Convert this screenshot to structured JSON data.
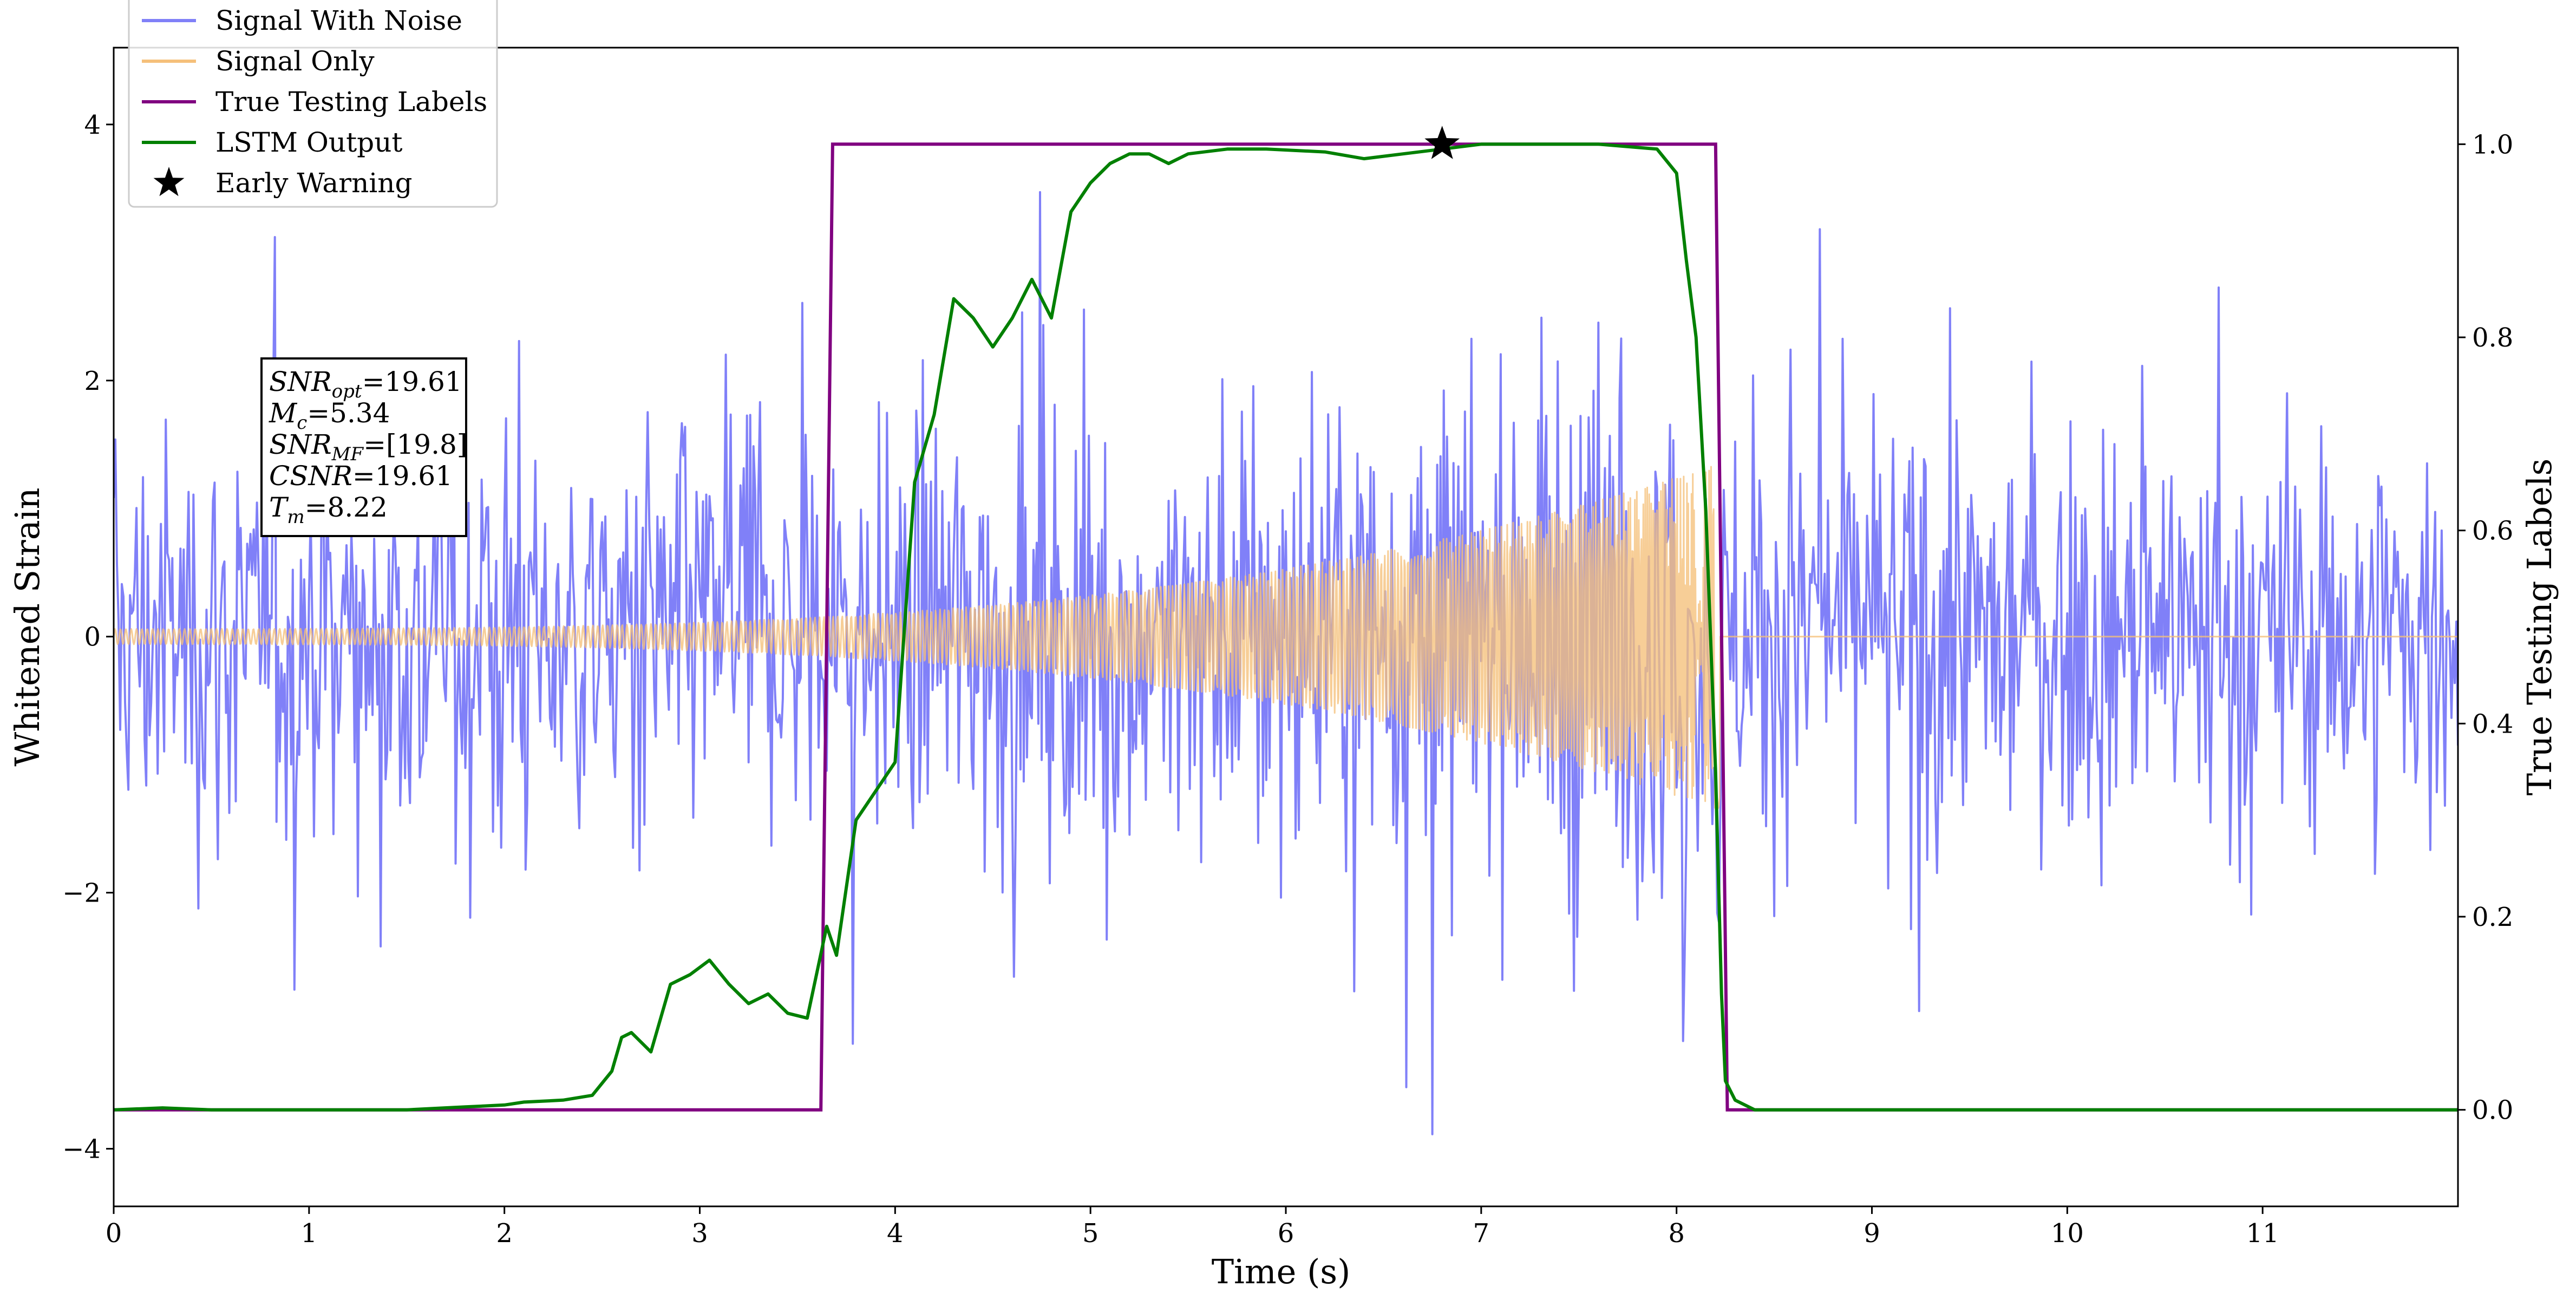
{
  "chart_data": {
    "type": "line",
    "xlabel": "Time (s)",
    "ylabel": "Whitened Strain",
    "y2label": "True Testing Labels",
    "xlim": [
      0,
      12
    ],
    "ylim": [
      -4.45,
      4.6
    ],
    "y2lim": [
      -0.1,
      1.1
    ],
    "x_ticks": [
      0,
      1,
      2,
      3,
      4,
      5,
      6,
      7,
      8,
      9,
      10,
      11
    ],
    "x_tick_labels": [
      "0",
      "1",
      "2",
      "3",
      "4",
      "5",
      "6",
      "7",
      "8",
      "9",
      "10",
      "11"
    ],
    "y_ticks": [
      -4,
      -2,
      0,
      2,
      4
    ],
    "y_tick_labels": [
      "−4",
      "−2",
      "0",
      "2",
      "4"
    ],
    "y2_ticks": [
      0.0,
      0.2,
      0.4,
      0.6,
      0.8,
      1.0
    ],
    "y2_tick_labels": [
      "0.0",
      "0.2",
      "0.4",
      "0.6",
      "0.8",
      "1.0"
    ],
    "grid": false,
    "legend_position": "top-left",
    "series": [
      {
        "name": "Signal With Noise",
        "color": "#8080f8",
        "axis": "left",
        "description_values": {
          "t_start": 0,
          "t_end": 12,
          "noise_sigma": 1.0,
          "sample_rate": 120
        }
      },
      {
        "name": "Signal Only",
        "color": "#f5c07a",
        "axis": "left",
        "chirp": {
          "t_start": 0,
          "t_merger": 8.22,
          "amp_start": 0.06,
          "amp_end": 1.35
        }
      },
      {
        "name": "True Testing Labels",
        "color": "#800080",
        "axis": "right",
        "x": [
          0,
          3.62,
          3.68,
          8.2,
          8.26,
          12
        ],
        "y": [
          0,
          0,
          1,
          1,
          0,
          0
        ]
      },
      {
        "name": "LSTM Output",
        "color": "#008000",
        "axis": "right",
        "x": [
          0,
          0.25,
          0.5,
          1.0,
          1.5,
          1.8,
          2.0,
          2.1,
          2.3,
          2.45,
          2.55,
          2.6,
          2.65,
          2.75,
          2.85,
          2.95,
          3.05,
          3.15,
          3.25,
          3.35,
          3.45,
          3.55,
          3.65,
          3.7,
          3.8,
          3.9,
          4.0,
          4.1,
          4.2,
          4.3,
          4.4,
          4.5,
          4.6,
          4.7,
          4.8,
          4.9,
          5.0,
          5.1,
          5.2,
          5.3,
          5.4,
          5.5,
          5.7,
          5.9,
          6.2,
          6.4,
          6.6,
          6.8,
          7.0,
          7.3,
          7.6,
          7.9,
          8.0,
          8.05,
          8.1,
          8.15,
          8.2,
          8.23,
          8.25,
          8.3,
          8.4,
          9.0,
          12.0
        ],
        "y": [
          0.0,
          0.002,
          0.0,
          0.0,
          0.0,
          0.003,
          0.005,
          0.008,
          0.01,
          0.015,
          0.04,
          0.075,
          0.08,
          0.06,
          0.13,
          0.14,
          0.155,
          0.13,
          0.11,
          0.12,
          0.1,
          0.095,
          0.19,
          0.16,
          0.3,
          0.33,
          0.36,
          0.65,
          0.72,
          0.84,
          0.82,
          0.79,
          0.82,
          0.86,
          0.82,
          0.93,
          0.96,
          0.98,
          0.99,
          0.99,
          0.98,
          0.99,
          0.995,
          0.995,
          0.992,
          0.985,
          0.99,
          0.995,
          1.0,
          1.0,
          1.0,
          0.995,
          0.97,
          0.88,
          0.8,
          0.62,
          0.35,
          0.12,
          0.03,
          0.01,
          0.0,
          0.0,
          0.0
        ]
      }
    ],
    "marker": {
      "name": "Early Warning",
      "x": 6.8,
      "y2": 1.0,
      "symbol": "star",
      "color": "#000000"
    },
    "annotation": [
      {
        "base": "SNR",
        "sub": "opt",
        "value": "=19.61"
      },
      {
        "base": "M",
        "sub": "c",
        "value": "=5.34"
      },
      {
        "base": "SNR",
        "sub": "MF",
        "value": "=[19.8]"
      },
      {
        "base": "CSNR",
        "sub": "",
        "value": "=19.61"
      },
      {
        "base": "T",
        "sub": "m",
        "value": "=8.22"
      }
    ]
  }
}
